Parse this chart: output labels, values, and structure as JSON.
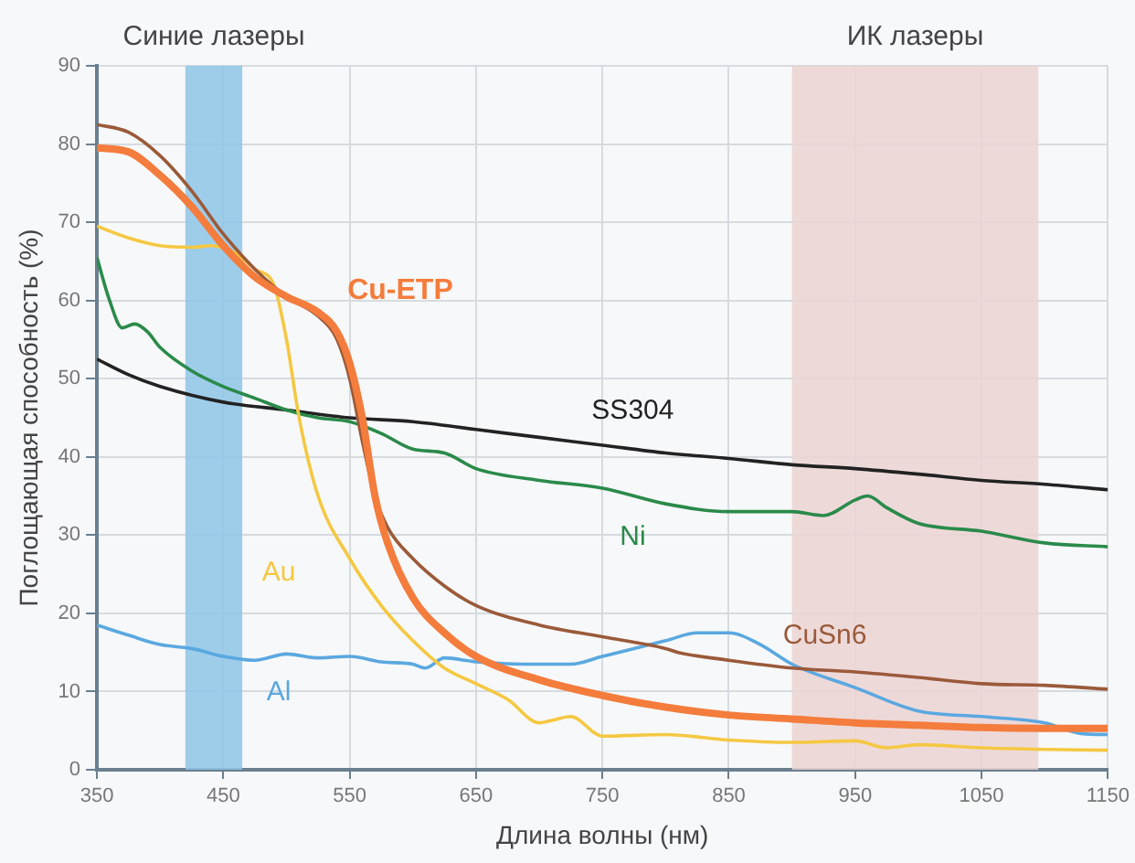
{
  "chart_data": {
    "type": "line",
    "xlabel": "Длина волны (нм)",
    "ylabel": "Поглощающая способность (%)",
    "xlim": [
      350,
      1150
    ],
    "xticks": [
      350,
      450,
      550,
      650,
      750,
      850,
      950,
      1050,
      1150
    ],
    "ylim": [
      0,
      90
    ],
    "yticks": [
      0,
      10,
      20,
      30,
      40,
      50,
      60,
      70,
      80,
      90
    ],
    "grid": true,
    "legend": false,
    "bands": [
      {
        "axis": "x",
        "from": 420,
        "to": 465,
        "label": "Синие лазеры",
        "color": "#8ec5e8"
      },
      {
        "axis": "x",
        "from": 900,
        "to": 1095,
        "label": "ИК лазеры",
        "color": "#ecd3d3"
      }
    ],
    "series": [
      {
        "name": "Cu-ETP",
        "color": "#f47c3c",
        "x": [
          350,
          375,
          400,
          425,
          450,
          475,
          500,
          525,
          540,
          550,
          560,
          570,
          580,
          600,
          625,
          650,
          700,
          750,
          800,
          850,
          900,
          950,
          1000,
          1050,
          1100,
          1150
        ],
        "values": [
          79.5,
          79,
          76,
          72,
          67,
          63,
          60.5,
          58.5,
          56,
          52,
          45,
          35,
          29,
          22,
          17.5,
          14.5,
          11.5,
          9.5,
          8,
          7,
          6.5,
          6,
          5.7,
          5.4,
          5.3,
          5.3
        ]
      },
      {
        "name": "CuSn6",
        "color": "#9a5a3a",
        "x": [
          350,
          375,
          400,
          425,
          450,
          475,
          500,
          525,
          540,
          550,
          560,
          570,
          580,
          600,
          625,
          650,
          700,
          750,
          800,
          810,
          850,
          900,
          950,
          1000,
          1050,
          1100,
          1150
        ],
        "values": [
          82.5,
          81.5,
          78.5,
          74,
          68.5,
          64,
          60.5,
          58,
          55,
          50,
          42,
          35,
          31,
          27,
          23.5,
          21,
          18.5,
          17,
          15.5,
          15,
          14,
          13,
          12.5,
          11.8,
          11,
          10.8,
          10.3
        ]
      },
      {
        "name": "Au",
        "color": "#f5c842",
        "x": [
          350,
          375,
          400,
          425,
          440,
          460,
          475,
          490,
          500,
          510,
          525,
          550,
          575,
          600,
          625,
          650,
          675,
          700,
          710,
          725,
          750,
          800,
          850,
          900,
          950,
          975,
          1000,
          1050,
          1100,
          1150
        ],
        "values": [
          69.5,
          68,
          67,
          66.8,
          67,
          66,
          64,
          62,
          55,
          45,
          35,
          27,
          21,
          16.5,
          13,
          11,
          9,
          6,
          6.3,
          6.8,
          4.3,
          4.5,
          3.8,
          3.5,
          3.7,
          2.8,
          3.2,
          2.8,
          2.6,
          2.5
        ]
      },
      {
        "name": "Al",
        "color": "#5aa8e0",
        "x": [
          350,
          375,
          400,
          425,
          450,
          475,
          500,
          525,
          550,
          575,
          600,
          610,
          625,
          650,
          700,
          725,
          750,
          775,
          800,
          825,
          850,
          875,
          900,
          950,
          1000,
          1050,
          1100,
          1130,
          1150
        ],
        "values": [
          18.5,
          17.2,
          16,
          15.5,
          14.5,
          14,
          14.8,
          14.3,
          14.5,
          13.8,
          13.5,
          13,
          14.3,
          13.8,
          13.5,
          13.5,
          14.5,
          15.5,
          16.5,
          17.5,
          17.5,
          16,
          13.5,
          10.5,
          7.5,
          6.8,
          6,
          4.6,
          4.5
        ]
      },
      {
        "name": "Ni",
        "color": "#2a8a4a",
        "x": [
          350,
          360,
          370,
          380,
          390,
          400,
          425,
          450,
          475,
          500,
          525,
          550,
          575,
          600,
          625,
          650,
          700,
          750,
          800,
          850,
          900,
          925,
          950,
          960,
          975,
          1000,
          1050,
          1100,
          1150
        ],
        "values": [
          65.5,
          60,
          56.5,
          57,
          56,
          54,
          51,
          49,
          47.5,
          46,
          45,
          44.5,
          43,
          41,
          40.5,
          38.5,
          37,
          36,
          34,
          33,
          33,
          32.5,
          34.5,
          35,
          33.5,
          31.5,
          30.5,
          29,
          28.5
        ]
      },
      {
        "name": "SS304",
        "color": "#222222",
        "x": [
          350,
          375,
          400,
          450,
          500,
          550,
          600,
          650,
          700,
          750,
          800,
          850,
          900,
          950,
          1000,
          1050,
          1100,
          1150
        ],
        "values": [
          52.5,
          50.5,
          49,
          47,
          46,
          45,
          44.5,
          43.5,
          42.5,
          41.5,
          40.5,
          39.8,
          39,
          38.5,
          37.8,
          37,
          36.5,
          35.8
        ]
      }
    ]
  }
}
